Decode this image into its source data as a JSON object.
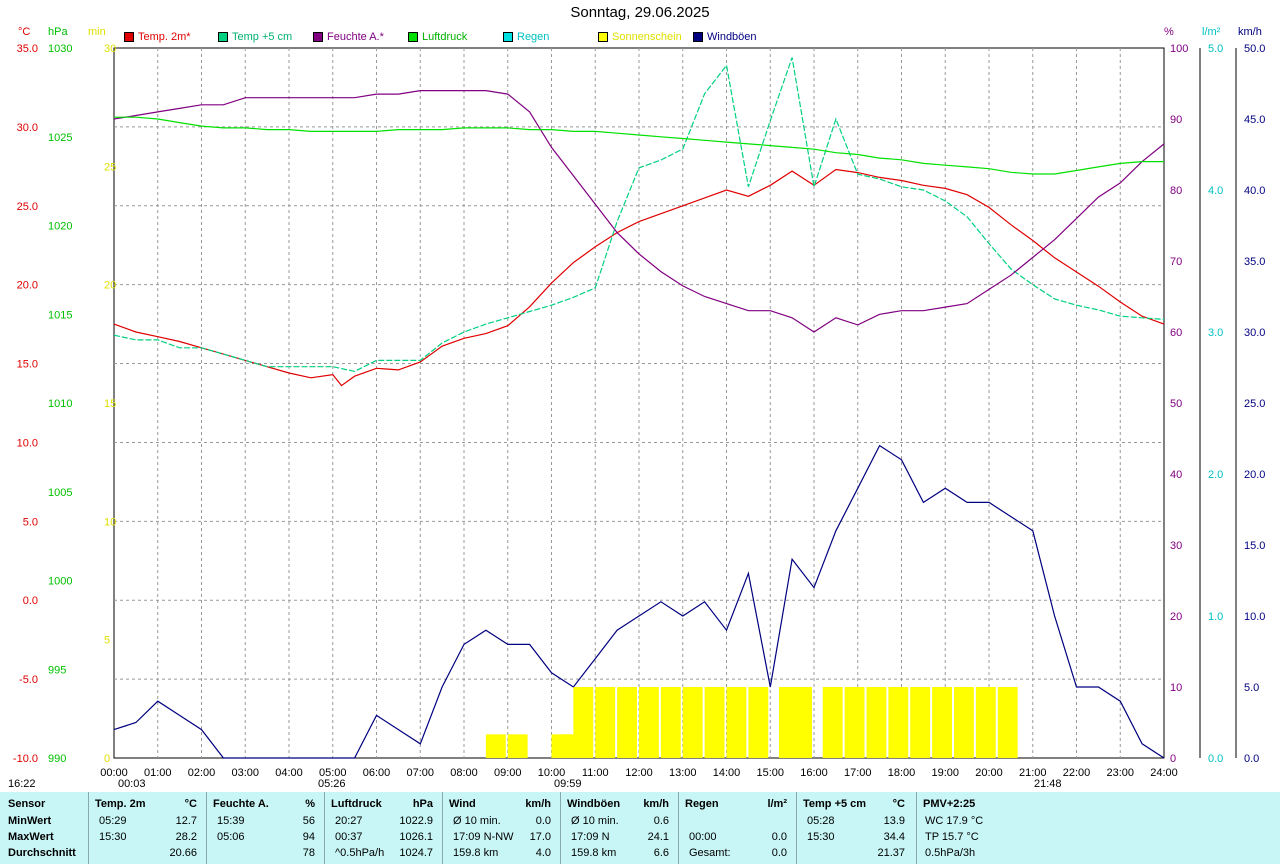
{
  "title": "Sonntag, 29.06.2025",
  "units": {
    "left_temp": "°C",
    "left_press": "hPa",
    "left_sun": "min",
    "right_hum": "%",
    "right_rain": "l/m²",
    "right_wind": "km/h"
  },
  "legend": [
    {
      "label": "Temp. 2m*",
      "color": "#e00000"
    },
    {
      "label": "Temp +5 cm",
      "color": "#00d080"
    },
    {
      "label": "Feuchte A.*",
      "color": "#800080"
    },
    {
      "label": "Luftdruck",
      "color": "#00e000"
    },
    {
      "label": "Regen",
      "color": "#00e0e0"
    },
    {
      "label": "Sonnenschein",
      "color": "#ffff00"
    },
    {
      "label": "Windböen",
      "color": "#000080"
    }
  ],
  "colors": {
    "temp2m": "#e00000",
    "temp5cm": "#00d080",
    "humidity": "#800080",
    "pressure": "#00e000",
    "rain": "#00e0e0",
    "sun": "#ffff00",
    "wind": "#000080",
    "statsbg": "#c8f5f5"
  },
  "markers": {
    "sunrise": "05:26",
    "sunset": "21:48",
    "moonrise": "00:03",
    "moonset": "09:59",
    "daylength": "16:22"
  },
  "chart_data": {
    "type": "line",
    "title": "Sonntag, 29.06.2025",
    "x_tick_labels": [
      "00:00",
      "01:00",
      "02:00",
      "03:00",
      "04:00",
      "05:00",
      "06:00",
      "07:00",
      "08:00",
      "09:00",
      "10:00",
      "11:00",
      "12:00",
      "13:00",
      "14:00",
      "15:00",
      "16:00",
      "17:00",
      "18:00",
      "19:00",
      "20:00",
      "21:00",
      "22:00",
      "23:00",
      "24:00"
    ],
    "axes": {
      "temp": {
        "unit": "°C",
        "range": [
          -10,
          35
        ],
        "ticks": [
          "35.0",
          "30.0",
          "25.0",
          "20.0",
          "15.0",
          "10.0",
          "5.0",
          "0.0",
          "-5.0",
          "-10.0"
        ]
      },
      "pressure": {
        "unit": "hPa",
        "range": [
          990,
          1030
        ],
        "ticks": [
          "1030",
          "1025",
          "1020",
          "1015",
          "1010",
          "1005",
          "1000",
          "995",
          "990"
        ]
      },
      "sun": {
        "unit": "min",
        "range": [
          0,
          30
        ],
        "ticks": [
          "30",
          "25",
          "20",
          "15",
          "10",
          "5",
          "0"
        ]
      },
      "humidity": {
        "unit": "%",
        "range": [
          0,
          100
        ],
        "ticks": [
          "100",
          "90",
          "80",
          "70",
          "60",
          "50",
          "40",
          "30",
          "20",
          "10",
          "0"
        ]
      },
      "rain": {
        "unit": "l/m²",
        "range": [
          0,
          5
        ],
        "ticks": [
          "5.0",
          "4.0",
          "3.0",
          "2.0",
          "1.0",
          "0.0"
        ]
      },
      "wind": {
        "unit": "km/h",
        "range": [
          0,
          50
        ],
        "ticks": [
          "50.0",
          "45.0",
          "40.0",
          "35.0",
          "30.0",
          "25.0",
          "20.0",
          "15.0",
          "10.0",
          "5.0",
          "0.0"
        ]
      }
    },
    "grid": true,
    "series": [
      {
        "name": "Temp. 2m*",
        "axis": "temp",
        "x": [
          0,
          0.5,
          1,
          1.5,
          2,
          2.5,
          3,
          3.5,
          4,
          4.5,
          5,
          5.2,
          5.5,
          6,
          6.5,
          7,
          7.5,
          8,
          8.5,
          9,
          9.5,
          10,
          10.5,
          11,
          11.5,
          12,
          12.5,
          13,
          13.5,
          14,
          14.5,
          15,
          15.5,
          16,
          16.5,
          17,
          17.5,
          18,
          18.5,
          19,
          19.5,
          20,
          20.5,
          21,
          21.5,
          22,
          22.5,
          23,
          23.5,
          24
        ],
        "y": [
          17.5,
          17,
          16.7,
          16.4,
          16,
          15.6,
          15.2,
          14.8,
          14.4,
          14.1,
          14.3,
          13.6,
          14.2,
          14.7,
          14.6,
          15.1,
          16.1,
          16.6,
          16.9,
          17.4,
          18.6,
          20.1,
          21.4,
          22.4,
          23.3,
          24.0,
          24.5,
          25.0,
          25.5,
          26.0,
          25.6,
          26.3,
          27.2,
          26.3,
          27.3,
          27.1,
          26.8,
          26.6,
          26.3,
          26.1,
          25.7,
          24.9,
          23.8,
          22.8,
          21.7,
          20.8,
          19.9,
          18.9,
          18.0,
          17.5
        ]
      },
      {
        "name": "Temp +5 cm",
        "axis": "temp",
        "x": [
          0,
          0.5,
          1,
          1.5,
          2,
          2.5,
          3,
          3.5,
          4,
          4.5,
          5,
          5.5,
          6,
          6.5,
          7,
          7.5,
          8,
          8.5,
          9,
          9.5,
          10,
          10.5,
          11,
          11.5,
          12,
          12.5,
          13,
          13.5,
          14,
          14.5,
          15,
          15.5,
          16,
          16.5,
          17,
          17.5,
          18,
          18.5,
          19,
          19.5,
          20,
          20.5,
          21,
          21.5,
          22,
          22.5,
          23,
          23.5,
          24
        ],
        "y": [
          16.8,
          16.5,
          16.5,
          16.0,
          16.0,
          15.6,
          15.2,
          14.8,
          14.8,
          14.8,
          14.8,
          14.5,
          15.2,
          15.2,
          15.2,
          16.3,
          17.0,
          17.5,
          17.9,
          18.3,
          18.7,
          19.2,
          19.8,
          24.0,
          27.4,
          27.9,
          28.6,
          32.1,
          33.9,
          26.2,
          30.4,
          34.4,
          26.2,
          30.5,
          27.0,
          26.7,
          26.2,
          26.0,
          25.3,
          24.3,
          22.6,
          21.0,
          20.0,
          19.1,
          18.7,
          18.4,
          18.0,
          17.9,
          17.8
        ]
      },
      {
        "name": "Feuchte A.*",
        "axis": "humidity",
        "x": [
          0,
          0.5,
          1,
          1.5,
          2,
          2.5,
          3,
          3.5,
          4,
          4.5,
          5,
          5.5,
          6,
          6.5,
          7,
          7.5,
          8,
          8.5,
          9,
          9.5,
          10,
          10.5,
          11,
          11.5,
          12,
          12.5,
          13,
          13.5,
          14,
          14.5,
          15,
          15.5,
          16,
          16.5,
          17,
          17.5,
          18,
          18.5,
          19,
          19.5,
          20,
          20.5,
          21,
          21.5,
          22,
          22.5,
          23,
          23.5,
          24
        ],
        "y": [
          90,
          90.5,
          91,
          91.5,
          92,
          92,
          93,
          93,
          93,
          93,
          93,
          93,
          93.5,
          93.5,
          94,
          94,
          94,
          94,
          93.5,
          91,
          86,
          82,
          78,
          74,
          71,
          68.5,
          66.5,
          65,
          64,
          63,
          63,
          62,
          60,
          62,
          61,
          62.5,
          63,
          63,
          63.5,
          64,
          66,
          68,
          70.5,
          73,
          76,
          79,
          81,
          84,
          86.5
        ]
      },
      {
        "name": "Luftdruck",
        "axis": "pressure",
        "x": [
          0,
          0.5,
          1,
          1.5,
          2,
          2.5,
          3,
          3.5,
          4,
          4.5,
          5,
          5.5,
          6,
          6.5,
          7,
          7.5,
          8,
          8.5,
          9,
          9.5,
          10,
          10.5,
          11,
          11.5,
          12,
          12.5,
          13,
          13.5,
          14,
          14.5,
          15,
          15.5,
          16,
          16.5,
          17,
          17.5,
          18,
          18.5,
          19,
          19.5,
          20,
          20.5,
          21,
          21.5,
          22,
          22.5,
          23,
          23.5,
          24
        ],
        "y": [
          1026.1,
          1026.1,
          1026.0,
          1025.8,
          1025.6,
          1025.5,
          1025.5,
          1025.4,
          1025.4,
          1025.3,
          1025.3,
          1025.3,
          1025.3,
          1025.4,
          1025.4,
          1025.4,
          1025.5,
          1025.5,
          1025.5,
          1025.4,
          1025.4,
          1025.3,
          1025.3,
          1025.2,
          1025.1,
          1025.0,
          1024.9,
          1024.8,
          1024.7,
          1024.6,
          1024.5,
          1024.4,
          1024.3,
          1024.1,
          1024.0,
          1023.8,
          1023.7,
          1023.5,
          1023.4,
          1023.3,
          1023.2,
          1023.0,
          1022.9,
          1022.9,
          1023.1,
          1023.3,
          1023.5,
          1023.6,
          1023.6
        ]
      },
      {
        "name": "Windböen",
        "axis": "wind",
        "x": [
          0,
          0.5,
          1,
          1.5,
          2,
          2.5,
          3,
          3.5,
          4,
          4.5,
          5,
          5.5,
          6,
          6.5,
          7,
          7.5,
          8,
          8.5,
          9,
          9.5,
          10,
          10.5,
          11,
          11.5,
          12,
          12.5,
          13,
          13.5,
          14,
          14.5,
          15,
          15.5,
          16,
          16.5,
          17,
          17.5,
          18,
          18.5,
          19,
          19.5,
          20,
          20.5,
          21,
          21.5,
          22,
          22.5,
          23,
          23.5,
          24
        ],
        "y": [
          2.0,
          2.5,
          4.0,
          3.0,
          2.0,
          0,
          0,
          0,
          0,
          0,
          0,
          0,
          3.0,
          2.0,
          1.0,
          5.0,
          8.0,
          9.0,
          8.0,
          8.0,
          6.0,
          5.0,
          7.0,
          9.0,
          10.0,
          11.0,
          10.0,
          11.0,
          9.0,
          13.0,
          5.0,
          14.0,
          12.0,
          16.0,
          19.0,
          22.0,
          21.0,
          18.0,
          19.0,
          18.0,
          18.0,
          17.0,
          16.0,
          10.0,
          5.0,
          5.0,
          4.0,
          1.0,
          0
        ]
      },
      {
        "name": "Sonnenschein",
        "axis": "sun",
        "type": "bar",
        "x": [
          8.5,
          9.0,
          10.0,
          10.3,
          10.5,
          11,
          11.5,
          12,
          12.5,
          13,
          13.5,
          14,
          14.5,
          15.2,
          15.5,
          16.2,
          16.7,
          17.2,
          17.7,
          18.2,
          18.7,
          19.2,
          19.7,
          20.2
        ],
        "y": [
          1,
          1,
          1,
          1,
          3,
          3,
          3,
          3,
          3,
          3,
          3,
          3,
          3,
          3,
          3,
          3,
          3,
          3,
          3,
          3,
          3,
          3,
          3,
          3
        ]
      }
    ]
  },
  "stats": {
    "columns": [
      {
        "title": "Sensor",
        "unit": "",
        "rows": [
          "MinWert",
          "MaxWert",
          "Durchschnitt"
        ]
      },
      {
        "title": "Temp. 2m",
        "unit": "°C",
        "rows": [
          [
            "05:29",
            "12.7"
          ],
          [
            "15:30",
            "28.2"
          ],
          [
            "",
            "20.66"
          ]
        ]
      },
      {
        "title": "Feuchte A.",
        "unit": "%",
        "rows": [
          [
            "15:39",
            "56"
          ],
          [
            "05:06",
            "94"
          ],
          [
            "",
            "78"
          ]
        ]
      },
      {
        "title": "Luftdruck",
        "unit": "hPa",
        "rows": [
          [
            "20:27",
            "1022.9"
          ],
          [
            "00:37",
            "1026.1"
          ],
          [
            "^0.5hPa/h",
            "1024.7"
          ]
        ]
      },
      {
        "title": "Wind",
        "unit": "km/h",
        "rows": [
          [
            "Ø 10 min.",
            "0.0"
          ],
          [
            "17:09   N-NW",
            "17.0"
          ],
          [
            "159.8 km",
            "4.0"
          ]
        ]
      },
      {
        "title": "Windböen",
        "unit": "km/h",
        "rows": [
          [
            "Ø 10 min.",
            "0.6"
          ],
          [
            "17:09   N",
            "24.1"
          ],
          [
            "159.8 km",
            "6.6"
          ]
        ]
      },
      {
        "title": "Regen",
        "unit": "l/m²",
        "rows": [
          [
            "",
            ""
          ],
          [
            "00:00",
            "0.0"
          ],
          [
            "Gesamt:",
            "0.0"
          ]
        ]
      },
      {
        "title": "Temp +5 cm",
        "unit": "°C",
        "rows": [
          [
            "05:28",
            "13.9"
          ],
          [
            "15:30",
            "34.4"
          ],
          [
            "",
            "21.37"
          ]
        ]
      },
      {
        "title": "PMV+2:25",
        "unit": "",
        "rows": [
          "WC 17.9 °C",
          "TP 15.7 °C",
          "0.5hPa/3h"
        ]
      }
    ]
  }
}
